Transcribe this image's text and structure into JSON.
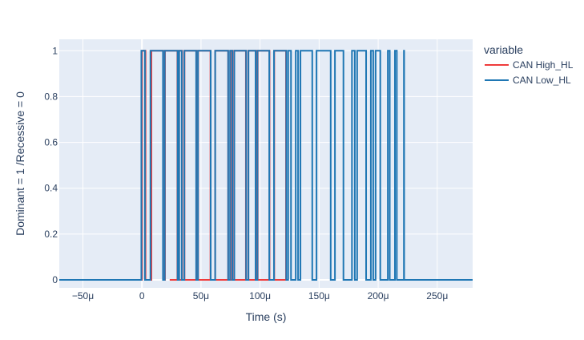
{
  "chart_data": {
    "type": "line",
    "title": "",
    "xlabel": "Time (s)",
    "ylabel": "Dominant = 1 /Recessive = 0",
    "xlim": [
      -7e-05,
      0.00028
    ],
    "ylim": [
      -0.035,
      1.05
    ],
    "x_ticks": [
      -5e-05,
      0,
      5e-05,
      0.0001,
      0.00015,
      0.0002,
      0.00025
    ],
    "x_tick_labels": [
      "−50μ",
      "0",
      "50μ",
      "100μ",
      "150μ",
      "200μ",
      "250μ"
    ],
    "y_ticks": [
      0,
      0.2,
      0.4,
      0.6,
      0.8,
      1
    ],
    "y_tick_labels": [
      "0",
      "0.2",
      "0.4",
      "0.6",
      "0.8",
      "1"
    ],
    "grid": true,
    "legend": {
      "title": "variable",
      "position": "right"
    },
    "colors": {
      "plot_bg": "#E5ECF6",
      "grid": "#ffffff",
      "text": "#2a3f5f"
    },
    "series": [
      {
        "name": "CAN High_HL",
        "color": "#ef3b3b",
        "step": true,
        "x": [
          -7e-05,
          0,
          3e-06,
          8e-06,
          1.8e-05,
          1.95e-05,
          3e-05,
          3.15e-05,
          3.4e-05,
          3.6e-05,
          4.6e-05,
          4.75e-05,
          5.8e-05,
          6.2e-05,
          7.3e-05,
          7.5e-05,
          7.65e-05,
          7.8e-05,
          8.8e-05,
          9e-05,
          9.65e-05,
          9.8e-05,
          0.000108,
          0.000112,
          0.000122,
          2.35e-05
        ],
        "y": [
          0,
          1,
          0,
          1,
          0,
          1,
          0,
          1,
          0,
          1,
          0,
          1,
          0,
          1,
          0,
          1,
          0,
          1,
          0,
          1,
          0,
          1,
          0,
          1,
          0,
          0
        ]
      },
      {
        "name": "CAN Low_HL",
        "color": "#1f77b4",
        "step": true,
        "x": [
          -7e-05,
          -5e-07,
          2.5e-06,
          7.2e-06,
          1.78e-05,
          1.93e-05,
          3.02e-05,
          3.15e-05,
          3.37e-05,
          3.59e-05,
          4.59e-05,
          4.74e-05,
          5.82e-05,
          6.2e-05,
          7.3e-05,
          7.46e-05,
          7.65e-05,
          7.82e-05,
          8.82e-05,
          9.02e-05,
          9.62e-05,
          9.78e-05,
          0.0001078,
          0.0001118,
          0.0001222,
          0.0001238,
          0.0001262,
          0.0001302,
          0.0001322,
          0.0001342,
          0.0001442,
          0.0001478,
          0.0001598,
          0.0001634,
          0.0001706,
          0.0001778,
          0.0001802,
          0.0001822,
          0.0001898,
          0.0001938,
          0.0001958,
          0.0001978,
          0.0002018,
          0.0002082,
          0.0002098,
          0.0002142,
          0.0002158,
          0.0002218,
          0.000222,
          0.00028
        ],
        "y": [
          0,
          1,
          0,
          1,
          0,
          1,
          0,
          1,
          0,
          1,
          0,
          1,
          0,
          1,
          0,
          1,
          0,
          1,
          0,
          1,
          0,
          1,
          0,
          1,
          0,
          1,
          0,
          1,
          0,
          1,
          0,
          1,
          0,
          1,
          0,
          1,
          0,
          1,
          0,
          1,
          0,
          1,
          0,
          1,
          0,
          1,
          0,
          1,
          0,
          0
        ]
      }
    ]
  }
}
